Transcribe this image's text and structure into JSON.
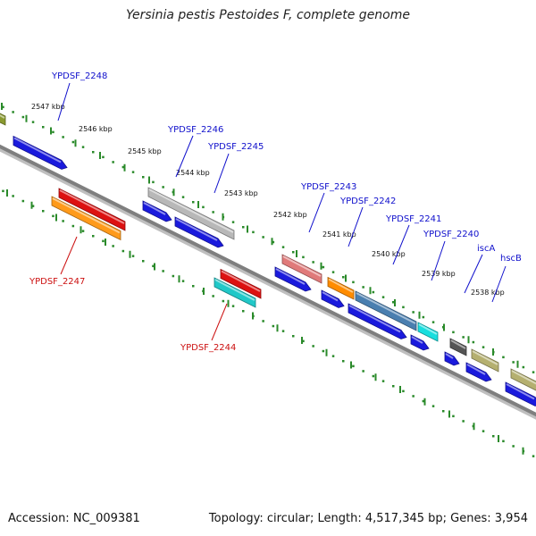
{
  "title": "Yersinia pestis Pestoides F, complete genome",
  "footer": {
    "accession": "Accession: NC_009381",
    "summary": "Topology: circular; Length: 4,517,345 bp; Genes: 3,954"
  },
  "colors": {
    "backbone": "#7f7f7f",
    "tick": "#2a8a2a",
    "forward_label": "#1010cc",
    "reverse_label": "#cc1010",
    "cds_forward": "#1a1add",
    "rna": "#dd1111"
  },
  "scale": {
    "unit": "kbp",
    "ticks": [
      {
        "label": "2547 kbp"
      },
      {
        "label": "2546 kbp"
      },
      {
        "label": "2545 kbp"
      },
      {
        "label": "2544 kbp"
      },
      {
        "label": "2543 kbp"
      },
      {
        "label": "2542 kbp"
      },
      {
        "label": "2541 kbp"
      },
      {
        "label": "2540 kbp"
      },
      {
        "label": "2539 kbp"
      },
      {
        "label": "2538 kbp"
      }
    ]
  },
  "genes": [
    {
      "label": "YPDSF_2248",
      "strand": "forward",
      "color": "#1010cc"
    },
    {
      "label": "YPDSF_2247",
      "strand": "reverse",
      "color": "#cc1010"
    },
    {
      "label": "YPDSF_2246",
      "strand": "forward",
      "color": "#1010cc"
    },
    {
      "label": "YPDSF_2245",
      "strand": "forward",
      "color": "#1010cc"
    },
    {
      "label": "YPDSF_2244",
      "strand": "reverse",
      "color": "#cc1010"
    },
    {
      "label": "YPDSF_2243",
      "strand": "forward",
      "color": "#1010cc"
    },
    {
      "label": "YPDSF_2242",
      "strand": "forward",
      "color": "#1010cc"
    },
    {
      "label": "YPDSF_2241",
      "strand": "forward",
      "color": "#1010cc"
    },
    {
      "label": "YPDSF_2240",
      "strand": "forward",
      "color": "#1010cc"
    },
    {
      "label": "iscA",
      "strand": "forward",
      "color": "#1010cc"
    },
    {
      "label": "hscB",
      "strand": "forward",
      "color": "#1010cc"
    }
  ]
}
